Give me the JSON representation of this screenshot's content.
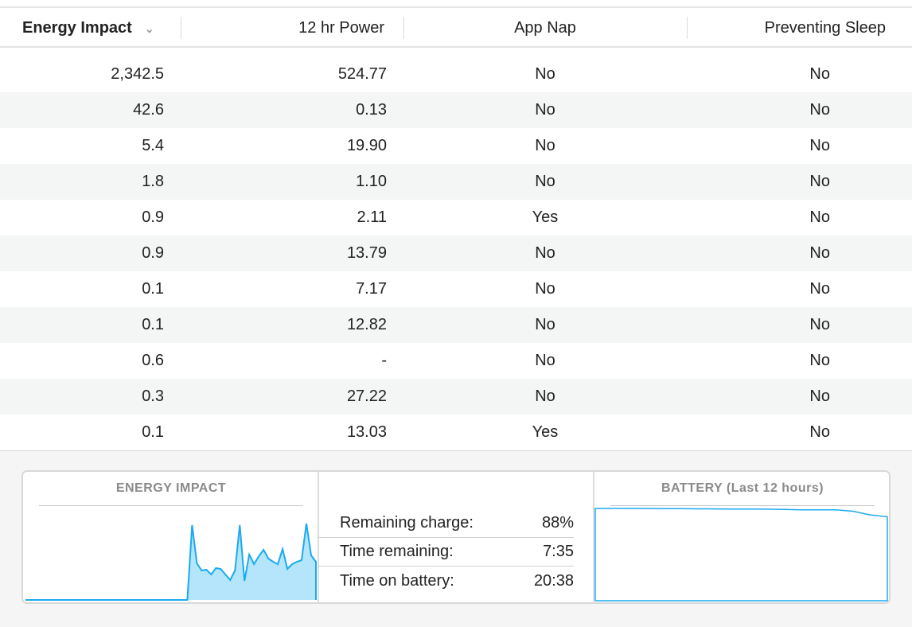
{
  "columns": [
    {
      "label": "Energy Impact",
      "sorted": true,
      "sort_icon": "chevron-down-icon"
    },
    {
      "label": "12 hr Power"
    },
    {
      "label": "App Nap"
    },
    {
      "label": "Preventing Sleep"
    }
  ],
  "rows": [
    [
      "2,342.5",
      "524.77",
      "No",
      "No"
    ],
    [
      "42.6",
      "0.13",
      "No",
      "No"
    ],
    [
      "5.4",
      "19.90",
      "No",
      "No"
    ],
    [
      "1.8",
      "1.10",
      "No",
      "No"
    ],
    [
      "0.9",
      "2.11",
      "Yes",
      "No"
    ],
    [
      "0.9",
      "13.79",
      "No",
      "No"
    ],
    [
      "0.1",
      "7.17",
      "No",
      "No"
    ],
    [
      "0.1",
      "12.82",
      "No",
      "No"
    ],
    [
      "0.6",
      "-",
      "No",
      "No"
    ],
    [
      "0.3",
      "27.22",
      "No",
      "No"
    ],
    [
      "0.1",
      "13.03",
      "Yes",
      "No"
    ]
  ],
  "energy_panel": {
    "title": "ENERGY IMPACT",
    "color": "#1aaaf0",
    "fill": "#b5e5fa",
    "values": [
      0,
      0,
      0,
      0,
      0,
      0,
      0,
      0,
      0,
      0,
      0,
      0,
      0,
      0,
      0,
      0,
      0,
      0,
      0,
      0,
      0,
      0,
      0,
      0,
      0,
      0,
      0,
      0,
      0,
      0,
      0,
      0,
      0,
      0,
      0,
      94,
      46,
      37,
      38,
      32,
      40,
      39,
      32,
      25,
      37,
      94,
      24,
      57,
      45,
      55,
      63,
      52,
      48,
      45,
      64,
      39,
      45,
      48,
      50,
      96,
      56,
      48
    ]
  },
  "stats": [
    {
      "label": "Remaining charge:",
      "value": "88%"
    },
    {
      "label": "Time remaining:",
      "value": "7:35"
    },
    {
      "label": "Time on battery:",
      "value": "20:38"
    }
  ],
  "battery_panel": {
    "title": "BATTERY (Last 12 hours)",
    "color": "#1aaaf0",
    "values": [
      100,
      100,
      100,
      99.9,
      99.8,
      99.7,
      99.6,
      99.5,
      99.4,
      99.3,
      99.2,
      99,
      98.5,
      98.5,
      98.5,
      97,
      93,
      91
    ]
  }
}
